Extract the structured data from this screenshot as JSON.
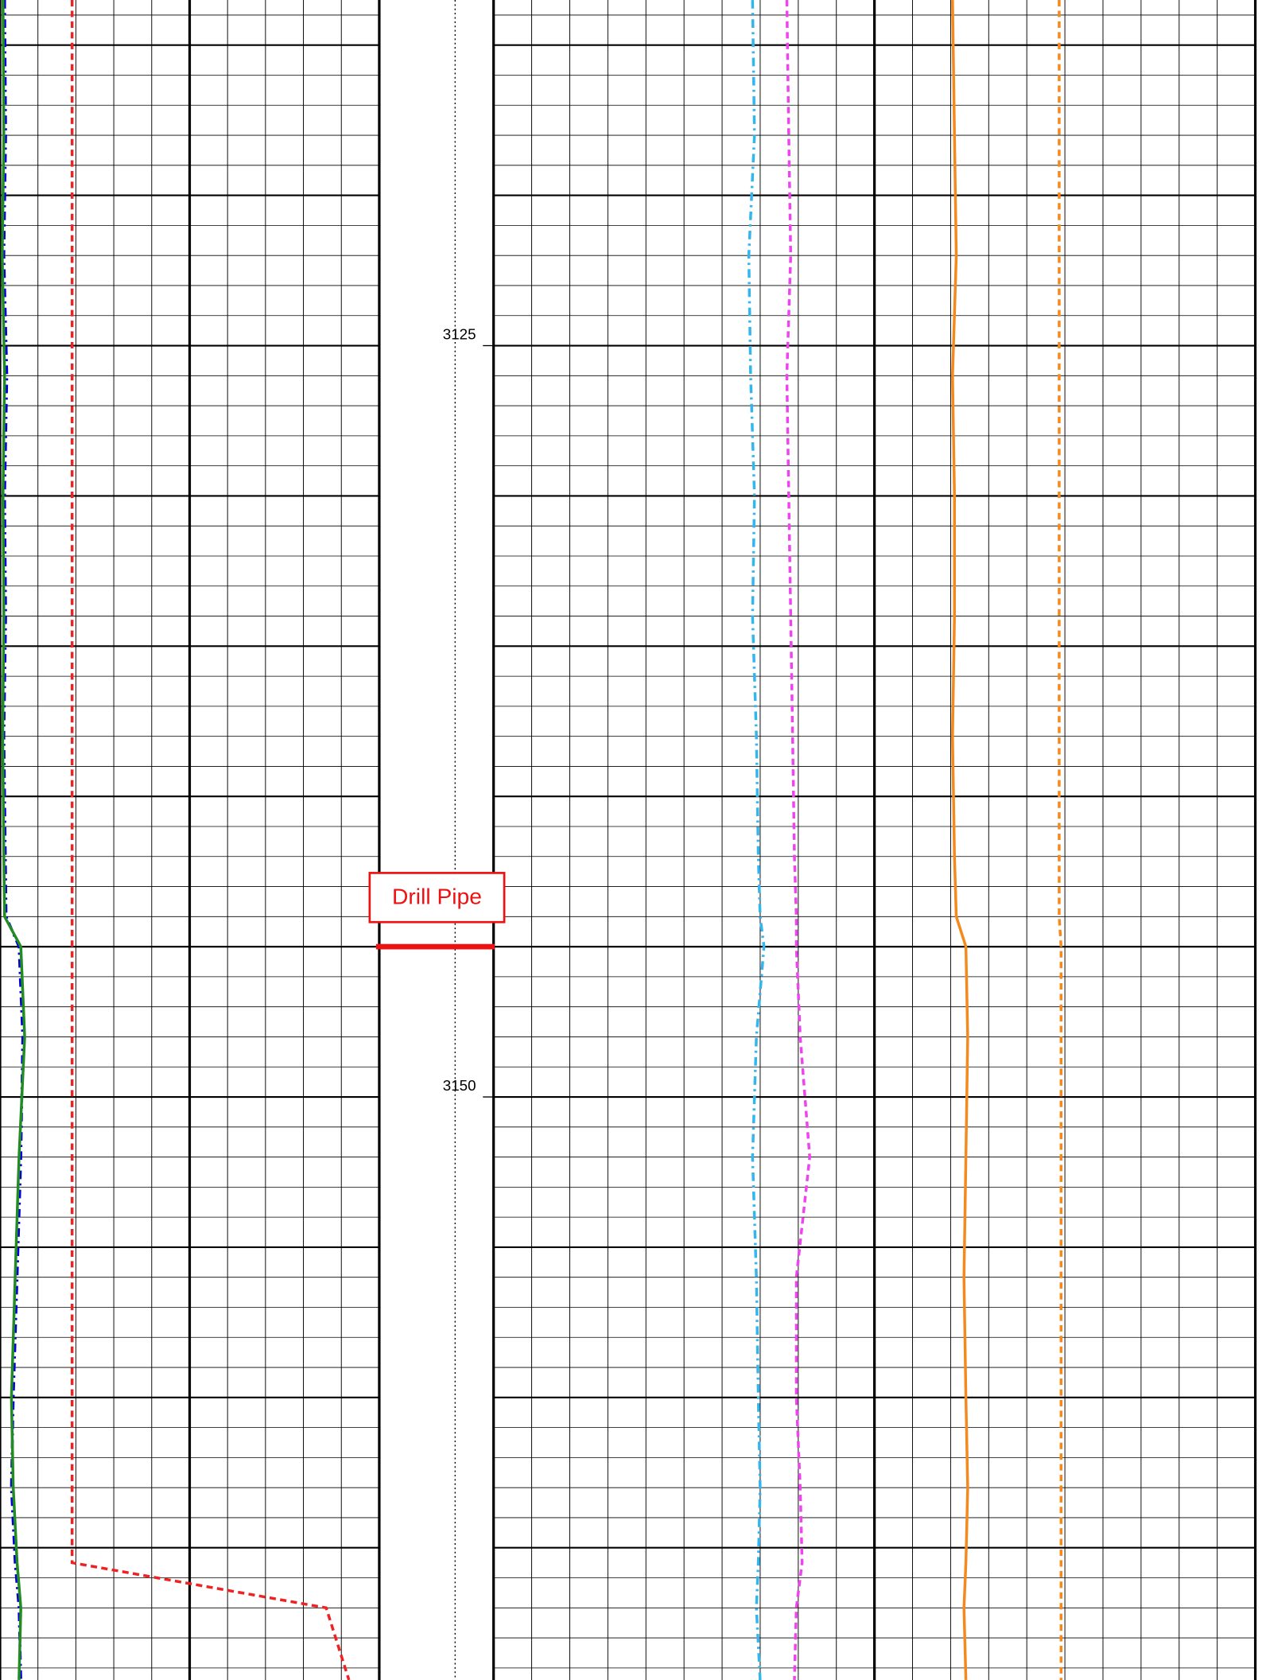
{
  "chart_data": {
    "type": "well-log",
    "ylim": [
      3113.5,
      3169.4
    ],
    "yticks": [
      3125,
      3150
    ],
    "grid": true,
    "x": [
      3113.5,
      3118,
      3122,
      3126,
      3130,
      3134,
      3138,
      3142,
      3144,
      3145,
      3148,
      3152,
      3156,
      3160,
      3163,
      3165.5,
      3167,
      3169.4
    ],
    "tracks": [
      {
        "xlim": [
          0,
          10
        ],
        "series": [
          {
            "color": "#0000dd",
            "dash": "dashdot",
            "values": [
              0.12,
              0.15,
              0.1,
              0.18,
              0.12,
              0.15,
              0.1,
              0.14,
              0.16,
              0.5,
              0.6,
              0.55,
              0.45,
              0.35,
              0.3,
              0.4,
              0.5,
              0.55
            ]
          },
          {
            "color": "#228b22",
            "dash": "solid",
            "values": [
              0.08,
              0.1,
              0.06,
              0.12,
              0.08,
              0.1,
              0.07,
              0.1,
              0.12,
              0.55,
              0.65,
              0.5,
              0.4,
              0.3,
              0.35,
              0.45,
              0.55,
              0.5
            ]
          },
          {
            "color": "#ee2222",
            "dash": "dashed",
            "values": [
              1.9,
              1.9,
              1.9,
              1.9,
              1.9,
              1.9,
              1.9,
              1.9,
              1.9,
              1.9,
              1.9,
              1.9,
              1.9,
              1.9,
              1.9,
              1.9,
              8.6,
              9.2
            ]
          }
        ]
      },
      {
        "xlim": [
          0,
          20
        ],
        "series": [
          {
            "color": "#33b5ee",
            "dash": "dashdot",
            "values": [
              6.8,
              6.85,
              6.7,
              6.75,
              6.85,
              6.8,
              6.9,
              6.95,
              7.0,
              7.1,
              6.9,
              6.8,
              6.9,
              6.95,
              7.0,
              6.95,
              6.9,
              7.0
            ]
          },
          {
            "color": "#ee44ee",
            "dash": "dashed",
            "values": [
              7.7,
              7.75,
              7.8,
              7.7,
              7.75,
              7.8,
              7.85,
              7.9,
              7.95,
              7.95,
              8.05,
              8.3,
              7.95,
              7.95,
              8.05,
              8.1,
              7.95,
              7.9
            ]
          },
          {
            "color": "#f48a1e",
            "dash": "solid",
            "values": [
              12.05,
              12.1,
              12.15,
              12.05,
              12.1,
              12.1,
              12.05,
              12.1,
              12.15,
              12.4,
              12.45,
              12.4,
              12.35,
              12.4,
              12.45,
              12.4,
              12.35,
              12.4
            ]
          },
          {
            "color": "#f48a1e",
            "dash": "dashed",
            "values": [
              14.85,
              14.85,
              14.85,
              14.85,
              14.85,
              14.85,
              14.85,
              14.85,
              14.85,
              14.9,
              14.9,
              14.9,
              14.9,
              14.9,
              14.9,
              14.9,
              14.9,
              14.9
            ]
          }
        ]
      }
    ],
    "annotations": [
      {
        "text": "Drill Pipe",
        "depth": 3145
      }
    ]
  }
}
